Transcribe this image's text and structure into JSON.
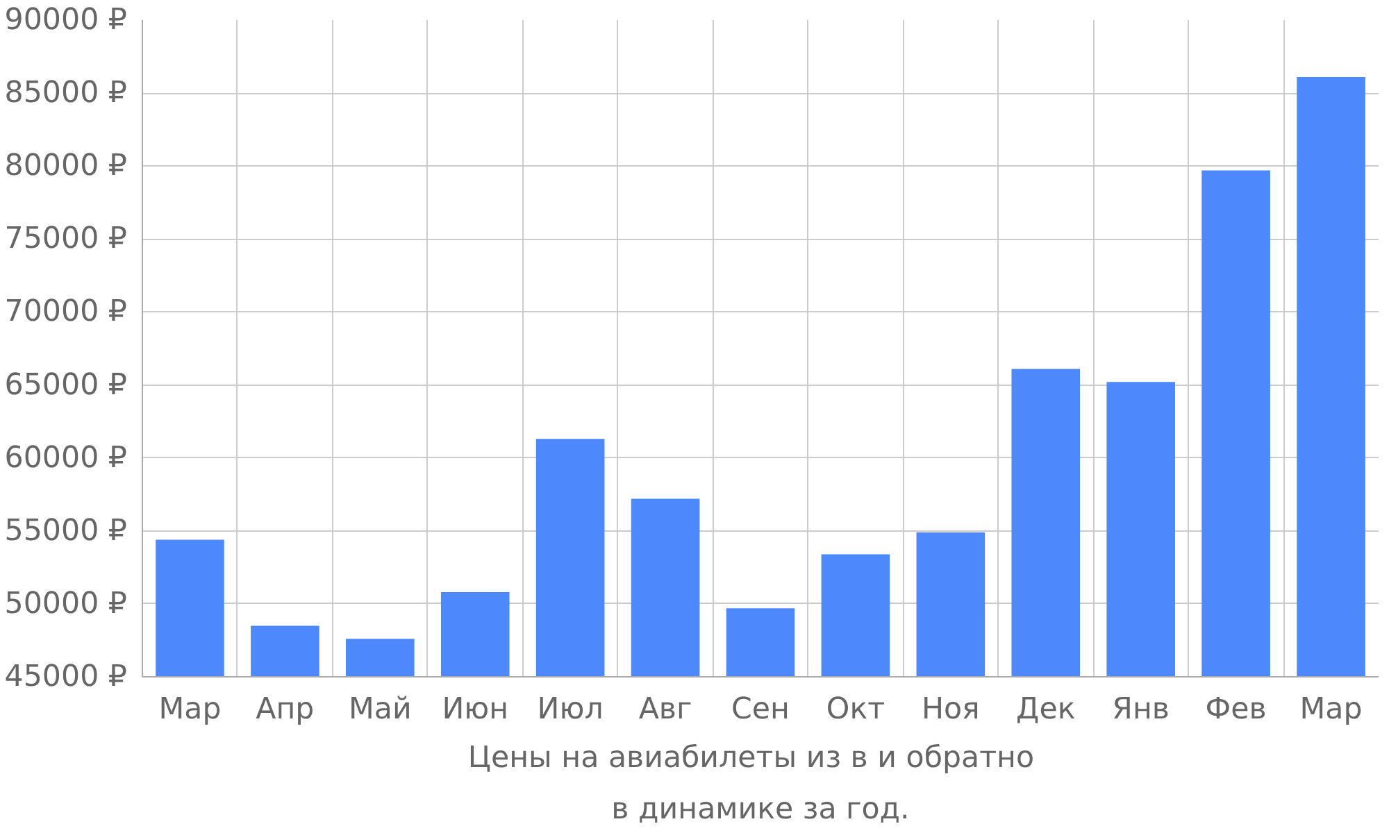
{
  "chart_data": {
    "type": "bar",
    "title": "Цены на авиабилеты из  в  и обратно",
    "subtitle": "в динамике за год.",
    "categories": [
      "Мар",
      "Апр",
      "Май",
      "Июн",
      "Июл",
      "Авг",
      "Сен",
      "Окт",
      "Ноя",
      "Дек",
      "Янв",
      "Фев",
      "Мар"
    ],
    "values": [
      54400,
      48500,
      47600,
      50800,
      61300,
      57200,
      49700,
      53400,
      54900,
      66100,
      65200,
      79700,
      86100
    ],
    "color": "#4d88fc",
    "ylim": [
      45000,
      90000
    ],
    "yticks": [
      {
        "value": 45000,
        "label": "45000 ₽"
      },
      {
        "value": 50000,
        "label": "50000 ₽"
      },
      {
        "value": 55000,
        "label": "55000 ₽"
      },
      {
        "value": 60000,
        "label": "60000 ₽"
      },
      {
        "value": 65000,
        "label": "65000 ₽"
      },
      {
        "value": 70000,
        "label": "70000 ₽"
      },
      {
        "value": 75000,
        "label": "75000 ₽"
      },
      {
        "value": 80000,
        "label": "80000 ₽"
      },
      {
        "value": 85000,
        "label": "85000 ₽"
      },
      {
        "value": 90000,
        "label": "90000 ₽"
      }
    ],
    "grid": true
  }
}
